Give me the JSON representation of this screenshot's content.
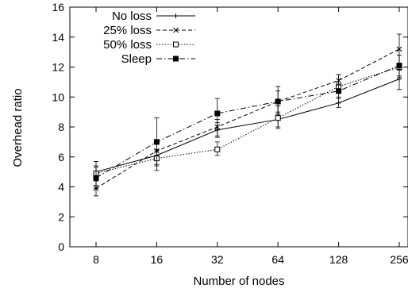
{
  "chart_data": {
    "type": "line",
    "title": "",
    "xlabel": "Number of nodes",
    "ylabel": "Overhead ratio",
    "categories": [
      "8",
      "16",
      "32",
      "64",
      "128",
      "256"
    ],
    "ylim": [
      0,
      16
    ],
    "yticks": [
      0,
      2,
      4,
      6,
      8,
      10,
      12,
      14,
      16
    ],
    "grid": false,
    "legend_position": "top-left",
    "series": [
      {
        "name": "No loss",
        "marker": "plus",
        "dash": "solid",
        "values": [
          5.0,
          6.1,
          7.8,
          8.5,
          9.6,
          11.2
        ],
        "err_low": [
          4.7,
          5.8,
          7.4,
          8.0,
          9.3,
          10.5
        ],
        "err_high": [
          5.3,
          6.5,
          8.3,
          9.0,
          9.9,
          11.8
        ]
      },
      {
        "name": "25% loss",
        "marker": "cross",
        "dash": "dashed",
        "values": [
          3.9,
          6.4,
          8.0,
          9.7,
          11.1,
          13.2
        ],
        "err_low": [
          3.4,
          5.5,
          7.3,
          8.9,
          10.5,
          12.1
        ],
        "err_high": [
          4.4,
          7.1,
          8.5,
          10.4,
          11.5,
          14.2
        ]
      },
      {
        "name": "50% loss",
        "marker": "square-open",
        "dash": "dotted",
        "values": [
          4.9,
          5.9,
          6.5,
          8.6,
          10.7,
          12.0
        ],
        "err_low": [
          4.1,
          5.1,
          6.1,
          7.9,
          10.0,
          11.3
        ],
        "err_high": [
          5.7,
          6.4,
          7.0,
          9.4,
          11.5,
          12.8
        ]
      },
      {
        "name": "Sleep",
        "marker": "square-filled",
        "dash": "dash-dot",
        "values": [
          4.6,
          7.0,
          8.9,
          9.7,
          10.4,
          12.1
        ],
        "err_low": [
          3.9,
          5.4,
          7.8,
          8.8,
          9.9,
          11.4
        ],
        "err_high": [
          5.4,
          8.6,
          9.9,
          10.7,
          10.8,
          12.8
        ]
      }
    ]
  }
}
